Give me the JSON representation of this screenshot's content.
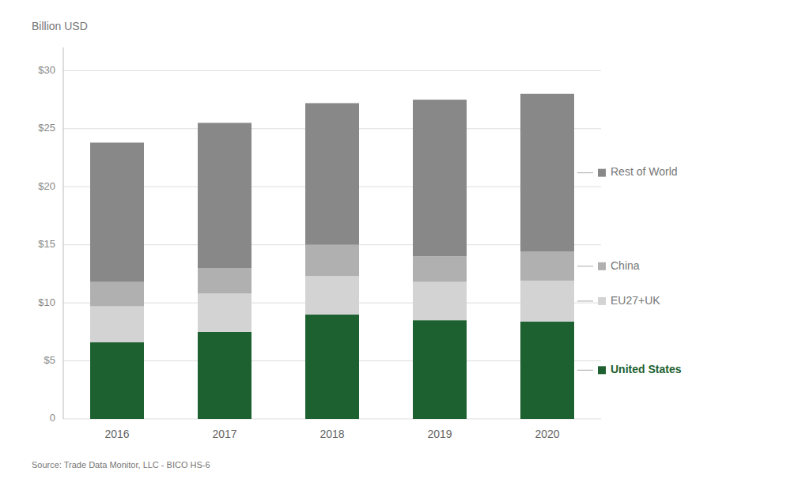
{
  "chart_data": {
    "type": "bar",
    "stacked": true,
    "y_label": "Billion USD",
    "annotations": [
      "Source: Trade Data Monitor, LLC - BICO HS-6"
    ],
    "categories": [
      "2016",
      "2017",
      "2018",
      "2019",
      "2020"
    ],
    "series": [
      {
        "name": "United States",
        "color": "#1e6130",
        "values": [
          6.6,
          7.5,
          9.0,
          8.5,
          8.4
        ]
      },
      {
        "name": "EU27+UK",
        "color": "#d3d3d3",
        "values": [
          3.1,
          3.3,
          3.3,
          3.3,
          3.5
        ]
      },
      {
        "name": "China",
        "color": "#b0b0b0",
        "values": [
          2.1,
          2.2,
          2.7,
          2.2,
          2.5
        ]
      },
      {
        "name": "Rest of World",
        "color": "#888888",
        "values": [
          12.0,
          12.5,
          12.2,
          13.5,
          13.6
        ]
      }
    ],
    "ylim": [
      0,
      32
    ],
    "yticks": [
      0,
      {
        "value": 5,
        "label": "$5"
      },
      {
        "value": 10,
        "label": "$10"
      },
      {
        "value": 15,
        "label": "$15"
      },
      {
        "value": 20,
        "label": "$20"
      },
      {
        "value": 25,
        "label": "$25"
      },
      {
        "value": 30,
        "label": "$30"
      }
    ],
    "grid": true,
    "legend": "right"
  }
}
